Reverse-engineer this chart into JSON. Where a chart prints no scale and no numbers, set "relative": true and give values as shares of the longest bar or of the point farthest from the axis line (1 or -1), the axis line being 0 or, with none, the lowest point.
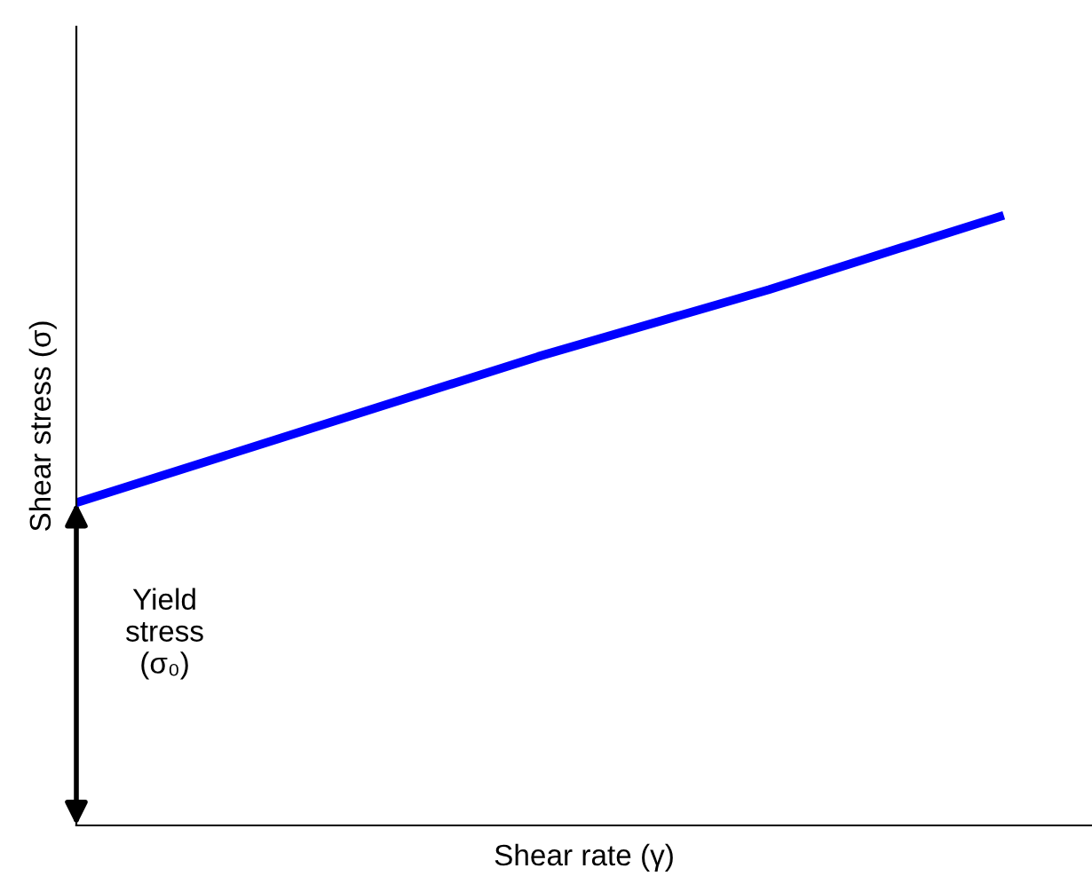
{
  "chart_data": {
    "type": "line",
    "relative": true,
    "xlabel": "Shear rate (γ)",
    "ylabel": "Shear stress (σ)",
    "categories": [
      null,
      null,
      null,
      null,
      null
    ],
    "series": [
      {
        "color": "#0000ff",
        "values": [
          0.53,
          0.65,
          0.77,
          0.88,
          1.0
        ]
      }
    ],
    "annotations": [
      "Yield\nstress\n(σ₀)"
    ],
    "grid": false,
    "legend": false,
    "marker": "none",
    "line_style": "solid"
  }
}
